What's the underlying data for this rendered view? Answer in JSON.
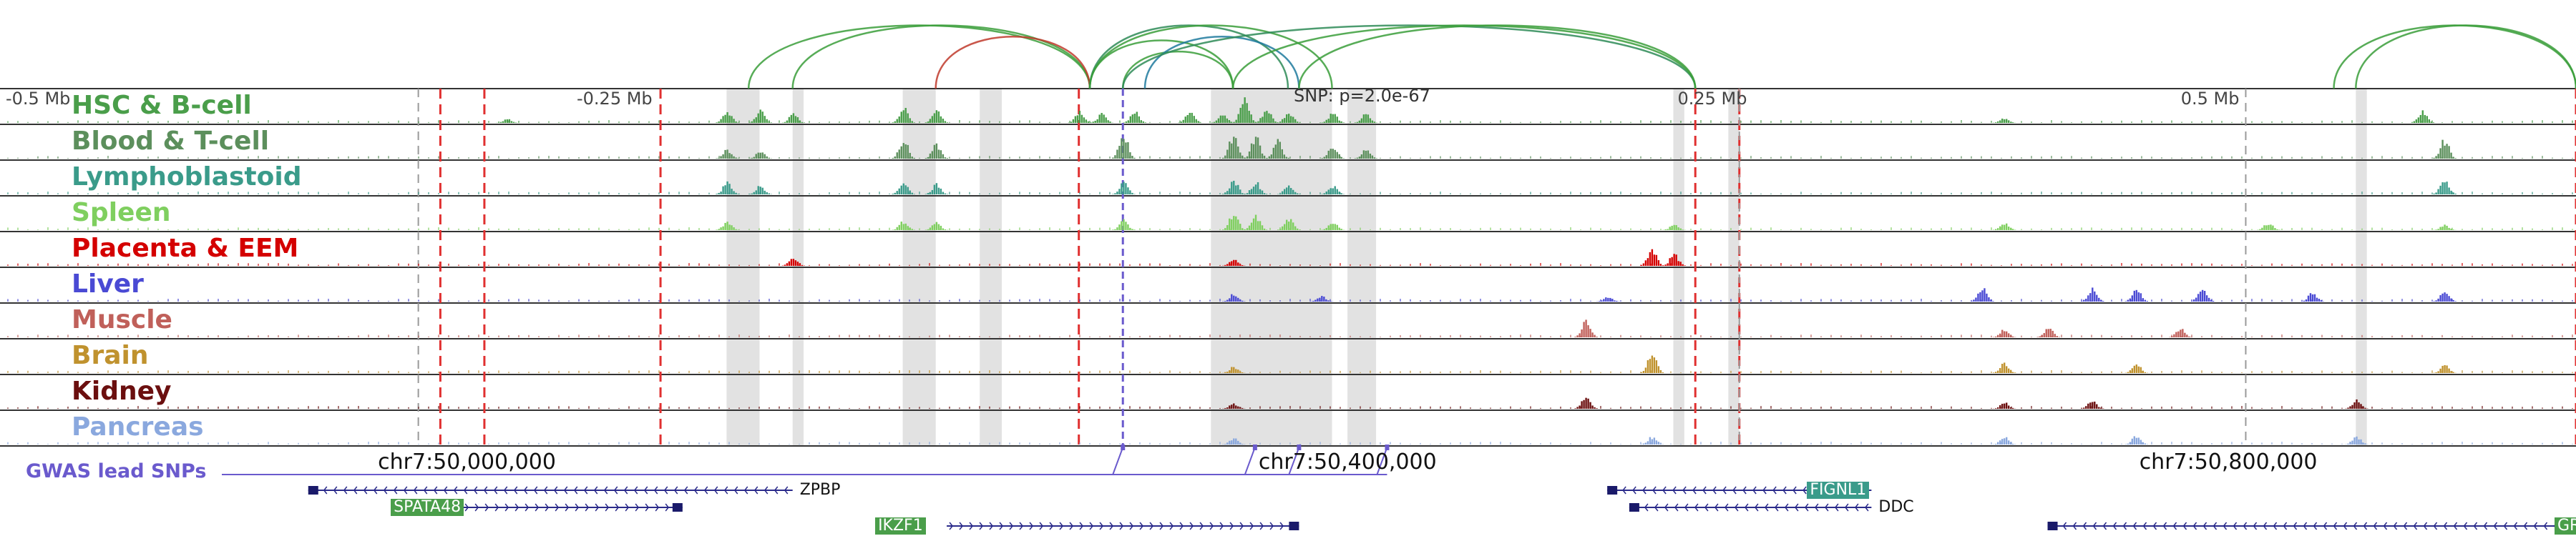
{
  "chart_data": {
    "type": "genome-browser",
    "region": {
      "chrom": "chr7",
      "start": 49790000,
      "end": 50960000
    },
    "top_coords": [
      {
        "label": "-0.5 Mb",
        "pos": 49800000
      },
      {
        "label": "-0.25 Mb",
        "pos": 50050000
      },
      {
        "label": "0.25 Mb",
        "pos": 50550000
      },
      {
        "label": "0.5 Mb",
        "pos": 50800000
      }
    ],
    "snp": {
      "label": "SNP: p=2.0e-67",
      "pos": 50300000
    },
    "tracks": [
      {
        "name": "HSC & B-cell",
        "color": "#4a9e4a",
        "peaks": [
          [
            50020,
            0.15
          ],
          [
            50120,
            0.45
          ],
          [
            50135,
            0.5
          ],
          [
            50150,
            0.35
          ],
          [
            50200,
            0.6
          ],
          [
            50215,
            0.55
          ],
          [
            50280,
            0.5
          ],
          [
            50290,
            0.35
          ],
          [
            50305,
            0.45
          ],
          [
            50330,
            0.5
          ],
          [
            50345,
            0.4
          ],
          [
            50355,
            1.0
          ],
          [
            50365,
            0.55
          ],
          [
            50375,
            0.45
          ],
          [
            50395,
            0.4
          ],
          [
            50410,
            0.35
          ],
          [
            50700,
            0.2
          ],
          [
            50890,
            0.45
          ]
        ]
      },
      {
        "name": "Blood & T-cell",
        "color": "#5c8f5c",
        "peaks": [
          [
            50120,
            0.35
          ],
          [
            50135,
            0.3
          ],
          [
            50200,
            0.8
          ],
          [
            50215,
            0.55
          ],
          [
            50300,
            1.0
          ],
          [
            50350,
            1.0
          ],
          [
            50360,
            0.9
          ],
          [
            50370,
            0.7
          ],
          [
            50395,
            0.5
          ],
          [
            50410,
            0.35
          ],
          [
            50900,
            0.75
          ]
        ]
      },
      {
        "name": "Lymphoblastoid",
        "color": "#3a9b8a",
        "peaks": [
          [
            50120,
            0.5
          ],
          [
            50135,
            0.35
          ],
          [
            50200,
            0.5
          ],
          [
            50215,
            0.4
          ],
          [
            50300,
            0.45
          ],
          [
            50350,
            0.55
          ],
          [
            50360,
            0.5
          ],
          [
            50375,
            0.35
          ],
          [
            50395,
            0.35
          ],
          [
            50900,
            0.65
          ]
        ]
      },
      {
        "name": "Spleen",
        "color": "#7fcf5f",
        "peaks": [
          [
            50120,
            0.35
          ],
          [
            50200,
            0.35
          ],
          [
            50215,
            0.3
          ],
          [
            50300,
            0.4
          ],
          [
            50350,
            0.7
          ],
          [
            50360,
            0.55
          ],
          [
            50375,
            0.45
          ],
          [
            50395,
            0.35
          ],
          [
            50550,
            0.2
          ],
          [
            50700,
            0.3
          ],
          [
            50820,
            0.3
          ],
          [
            50900,
            0.2
          ]
        ]
      },
      {
        "name": "Placenta & EEM",
        "color": "#d40000",
        "peaks": [
          [
            50150,
            0.3
          ],
          [
            50350,
            0.25
          ],
          [
            50540,
            0.7
          ],
          [
            50550,
            0.45
          ]
        ]
      },
      {
        "name": "Liver",
        "color": "#4a4ad4",
        "peaks": [
          [
            50350,
            0.3
          ],
          [
            50390,
            0.2
          ],
          [
            50520,
            0.2
          ],
          [
            50690,
            0.55
          ],
          [
            50740,
            0.5
          ],
          [
            50760,
            0.5
          ],
          [
            50790,
            0.6
          ],
          [
            50840,
            0.35
          ],
          [
            50900,
            0.4
          ]
        ]
      },
      {
        "name": "Muscle",
        "color": "#c0605a",
        "peaks": [
          [
            50510,
            0.7
          ],
          [
            50700,
            0.3
          ],
          [
            50720,
            0.4
          ],
          [
            50780,
            0.35
          ]
        ]
      },
      {
        "name": "Brain",
        "color": "#c0922e",
        "peaks": [
          [
            50350,
            0.25
          ],
          [
            50540,
            0.8
          ],
          [
            50700,
            0.4
          ],
          [
            50760,
            0.35
          ],
          [
            50900,
            0.3
          ]
        ]
      },
      {
        "name": "Kidney",
        "color": "#6b0f0f",
        "peaks": [
          [
            50350,
            0.2
          ],
          [
            50510,
            0.5
          ],
          [
            50700,
            0.25
          ],
          [
            50740,
            0.3
          ],
          [
            50860,
            0.35
          ]
        ]
      },
      {
        "name": "Pancreas",
        "color": "#8aa8de",
        "peaks": [
          [
            50350,
            0.25
          ],
          [
            50540,
            0.3
          ],
          [
            50700,
            0.3
          ],
          [
            50760,
            0.35
          ],
          [
            50860,
            0.3
          ]
        ]
      }
    ],
    "x_axis": [
      {
        "label": "chr7:50,000,000",
        "pos": 50000000
      },
      {
        "label": "chr7:50,400,000",
        "pos": 50400000
      },
      {
        "label": "chr7:50,800,000",
        "pos": 50800000
      }
    ],
    "gwas": {
      "label": "GWAS lead SNPs",
      "snps": [
        50300000,
        50360000,
        50380000,
        50420000
      ]
    },
    "red_lines": [
      49990000,
      50010000,
      50090000,
      50280000,
      50560000,
      50580000,
      50960000
    ],
    "gray_lines": [
      49980000,
      50580000,
      50810000
    ],
    "highlight_regions": [
      [
        50120000,
        50135000
      ],
      [
        50150000,
        50155000
      ],
      [
        50200000,
        50215000
      ],
      [
        50235000,
        50245000
      ],
      [
        50340000,
        50395000
      ],
      [
        50402000,
        50415000
      ],
      [
        50550000,
        50555000
      ],
      [
        50575000,
        50580000
      ],
      [
        50860000,
        50865000
      ]
    ],
    "loops": {
      "colors": [
        "#3a9e3a",
        "#2e8b57",
        "#c0392b",
        "#1f7a9e"
      ],
      "anchors": [
        [
          50130,
          50285,
          0
        ],
        [
          50150,
          50285,
          0
        ],
        [
          50215,
          50285,
          2
        ],
        [
          50285,
          50350,
          0
        ],
        [
          50285,
          50375,
          1
        ],
        [
          50285,
          50395,
          0
        ],
        [
          50300,
          50350,
          0
        ],
        [
          50310,
          50380,
          3
        ],
        [
          50300,
          50560,
          1
        ],
        [
          50350,
          50560,
          0
        ],
        [
          50380,
          50560,
          0
        ],
        [
          50850,
          50960,
          0
        ],
        [
          50860,
          50960,
          0
        ]
      ]
    },
    "genes": [
      {
        "name": "ZPBP",
        "start": 49930000,
        "end": 50150000,
        "strand": "-",
        "boxed": false,
        "row": 0
      },
      {
        "name": "SPATA48",
        "start": 50000000,
        "end": 50100000,
        "strand": "+",
        "boxed": true,
        "row": 1,
        "color": "#4a9e4a"
      },
      {
        "name": "IKZF1",
        "start": 50220000,
        "end": 50380000,
        "strand": "+",
        "boxed": true,
        "row": 2,
        "color": "#4a9e4a"
      },
      {
        "name": "FIGNL1",
        "start": 50520000,
        "end": 50640000,
        "strand": "-",
        "boxed": true,
        "row": 0,
        "color": "#3a9b8a"
      },
      {
        "name": "DDC",
        "start": 50530000,
        "end": 50640000,
        "strand": "-",
        "boxed": false,
        "row": 1
      },
      {
        "name": "GR",
        "start": 50720000,
        "end": 50960000,
        "strand": "-",
        "boxed": true,
        "row": 2,
        "color": "#4a9e4a"
      }
    ]
  }
}
